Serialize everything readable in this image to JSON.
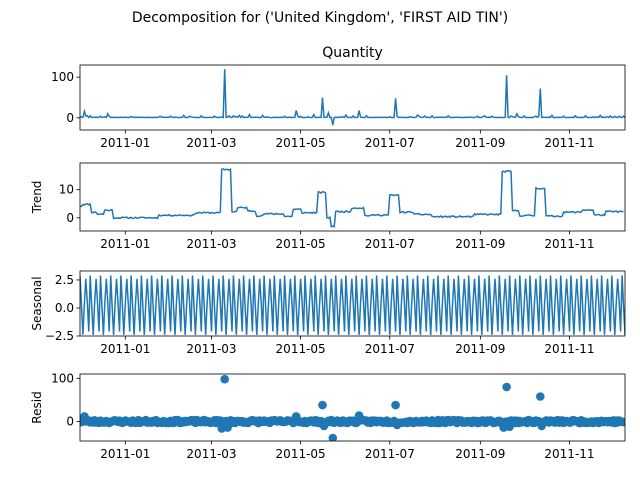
{
  "figure_title": "Decomposition for ('United Kingdom', 'FIRST AID TIN')",
  "chart_data": [
    {
      "type": "line",
      "title": "Quantity",
      "ylabel": "",
      "xlim": [
        "2010-12-01",
        "2011-12-09"
      ],
      "ylim": [
        -30,
        130
      ],
      "yticks": [
        0,
        100
      ],
      "xticks": [
        "2011-01",
        "2011-03",
        "2011-05",
        "2011-07",
        "2011-09",
        "2011-11"
      ],
      "baseline": 1,
      "spikes": [
        {
          "date": "2010-12-01",
          "value": 4
        },
        {
          "date": "2010-12-04",
          "value": 16
        },
        {
          "date": "2010-12-06",
          "value": 5
        },
        {
          "date": "2010-12-20",
          "value": 10
        },
        {
          "date": "2011-01-25",
          "value": 4
        },
        {
          "date": "2011-02-10",
          "value": 6
        },
        {
          "date": "2011-02-22",
          "value": 5
        },
        {
          "date": "2011-03-10",
          "value": 120
        },
        {
          "date": "2011-03-20",
          "value": 6
        },
        {
          "date": "2011-03-27",
          "value": 8
        },
        {
          "date": "2011-04-05",
          "value": 6
        },
        {
          "date": "2011-04-28",
          "value": 18
        },
        {
          "date": "2011-05-10",
          "value": 8
        },
        {
          "date": "2011-05-16",
          "value": 50
        },
        {
          "date": "2011-05-20",
          "value": 12
        },
        {
          "date": "2011-05-23",
          "value": -18
        },
        {
          "date": "2011-06-01",
          "value": 7
        },
        {
          "date": "2011-06-10",
          "value": 18
        },
        {
          "date": "2011-06-15",
          "value": 5
        },
        {
          "date": "2011-07-05",
          "value": 48
        },
        {
          "date": "2011-07-20",
          "value": 7
        },
        {
          "date": "2011-08-10",
          "value": 5
        },
        {
          "date": "2011-08-30",
          "value": 4
        },
        {
          "date": "2011-09-19",
          "value": 105
        },
        {
          "date": "2011-09-26",
          "value": 10
        },
        {
          "date": "2011-10-12",
          "value": 72
        },
        {
          "date": "2011-10-20",
          "value": 6
        },
        {
          "date": "2011-11-05",
          "value": 5
        },
        {
          "date": "2011-11-22",
          "value": 6
        },
        {
          "date": "2011-12-05",
          "value": 4
        }
      ]
    },
    {
      "type": "line",
      "title": "",
      "ylabel": "Trend",
      "xlim": [
        "2010-12-01",
        "2011-12-09"
      ],
      "ylim": [
        -4.7,
        19.5
      ],
      "yticks": [
        0,
        10
      ],
      "xticks": [
        "2011-01",
        "2011-03",
        "2011-05",
        "2011-07",
        "2011-09",
        "2011-11"
      ],
      "segments": [
        {
          "start": "2010-12-01",
          "end": "2010-12-03",
          "value": 4.2
        },
        {
          "start": "2010-12-03",
          "end": "2010-12-09",
          "value": 4.8
        },
        {
          "start": "2010-12-09",
          "end": "2010-12-13",
          "value": 2.0
        },
        {
          "start": "2010-12-13",
          "end": "2010-12-18",
          "value": 1.3
        },
        {
          "start": "2010-12-18",
          "end": "2010-12-24",
          "value": 2.7
        },
        {
          "start": "2010-12-24",
          "end": "2011-01-24",
          "value": 0.0
        },
        {
          "start": "2011-01-24",
          "end": "2011-02-18",
          "value": 0.9
        },
        {
          "start": "2011-02-18",
          "end": "2011-03-08",
          "value": 1.8
        },
        {
          "start": "2011-03-08",
          "end": "2011-03-15",
          "value": 17.2
        },
        {
          "start": "2011-03-15",
          "end": "2011-03-19",
          "value": 2.2
        },
        {
          "start": "2011-03-19",
          "end": "2011-03-26",
          "value": 3.6
        },
        {
          "start": "2011-03-26",
          "end": "2011-04-01",
          "value": 2.4
        },
        {
          "start": "2011-04-01",
          "end": "2011-04-06",
          "value": 0.7
        },
        {
          "start": "2011-04-06",
          "end": "2011-04-20",
          "value": 1.4
        },
        {
          "start": "2011-04-20",
          "end": "2011-04-26",
          "value": 0.5
        },
        {
          "start": "2011-04-26",
          "end": "2011-05-02",
          "value": 3.0
        },
        {
          "start": "2011-05-02",
          "end": "2011-05-13",
          "value": 1.8
        },
        {
          "start": "2011-05-13",
          "end": "2011-05-19",
          "value": 9.0
        },
        {
          "start": "2011-05-19",
          "end": "2011-05-22",
          "value": 0.0
        },
        {
          "start": "2011-05-22",
          "end": "2011-05-25",
          "value": -3.0
        },
        {
          "start": "2011-05-25",
          "end": "2011-06-05",
          "value": 2.2
        },
        {
          "start": "2011-06-05",
          "end": "2011-06-14",
          "value": 3.5
        },
        {
          "start": "2011-06-14",
          "end": "2011-06-20",
          "value": 0.8
        },
        {
          "start": "2011-06-20",
          "end": "2011-07-01",
          "value": 1.0
        },
        {
          "start": "2011-07-01",
          "end": "2011-07-08",
          "value": 8.0
        },
        {
          "start": "2011-07-08",
          "end": "2011-07-18",
          "value": 2.0
        },
        {
          "start": "2011-07-18",
          "end": "2011-07-30",
          "value": 1.2
        },
        {
          "start": "2011-07-30",
          "end": "2011-08-28",
          "value": 0.4
        },
        {
          "start": "2011-08-28",
          "end": "2011-09-16",
          "value": 1.2
        },
        {
          "start": "2011-09-16",
          "end": "2011-09-23",
          "value": 16.5
        },
        {
          "start": "2011-09-23",
          "end": "2011-09-28",
          "value": 2.5
        },
        {
          "start": "2011-09-28",
          "end": "2011-10-09",
          "value": 0.8
        },
        {
          "start": "2011-10-09",
          "end": "2011-10-16",
          "value": 10.5
        },
        {
          "start": "2011-10-16",
          "end": "2011-10-28",
          "value": 0.6
        },
        {
          "start": "2011-10-28",
          "end": "2011-11-10",
          "value": 2.0
        },
        {
          "start": "2011-11-10",
          "end": "2011-11-18",
          "value": 2.8
        },
        {
          "start": "2011-11-18",
          "end": "2011-11-26",
          "value": 1.0
        },
        {
          "start": "2011-11-26",
          "end": "2011-12-09",
          "value": 2.2
        }
      ]
    },
    {
      "type": "line",
      "title": "",
      "ylabel": "Seasonal",
      "xlim": [
        "2010-12-01",
        "2011-12-09"
      ],
      "ylim": [
        -2.5,
        3.3
      ],
      "yticks": [
        -2.5,
        0.0,
        2.5
      ],
      "xticks": [
        "2011-01",
        "2011-03",
        "2011-05",
        "2011-07",
        "2011-09",
        "2011-11"
      ],
      "period_days": 7,
      "weekly_pattern": [
        2.9,
        0.2,
        -2.4,
        0.4,
        2.6,
        0.5,
        -2.1
      ]
    },
    {
      "type": "scatter",
      "title": "",
      "ylabel": "Resid",
      "xlim": [
        "2010-12-01",
        "2011-12-09"
      ],
      "ylim": [
        -45,
        110
      ],
      "yticks": [
        0,
        100
      ],
      "xticks": [
        "2011-01",
        "2011-03",
        "2011-05",
        "2011-07",
        "2011-09",
        "2011-11"
      ],
      "baseline": 0,
      "outliers": [
        {
          "date": "2010-12-04",
          "value": 12
        },
        {
          "date": "2011-03-08",
          "value": -16
        },
        {
          "date": "2011-03-10",
          "value": 98
        },
        {
          "date": "2011-03-12",
          "value": -14
        },
        {
          "date": "2011-04-28",
          "value": 12
        },
        {
          "date": "2011-05-16",
          "value": 38
        },
        {
          "date": "2011-05-17",
          "value": -10
        },
        {
          "date": "2011-05-23",
          "value": -38
        },
        {
          "date": "2011-06-10",
          "value": 14
        },
        {
          "date": "2011-07-05",
          "value": 38
        },
        {
          "date": "2011-07-06",
          "value": -8
        },
        {
          "date": "2011-09-17",
          "value": -14
        },
        {
          "date": "2011-09-19",
          "value": 80
        },
        {
          "date": "2011-09-21",
          "value": -12
        },
        {
          "date": "2011-10-12",
          "value": 58
        },
        {
          "date": "2011-10-13",
          "value": -10
        }
      ]
    }
  ]
}
